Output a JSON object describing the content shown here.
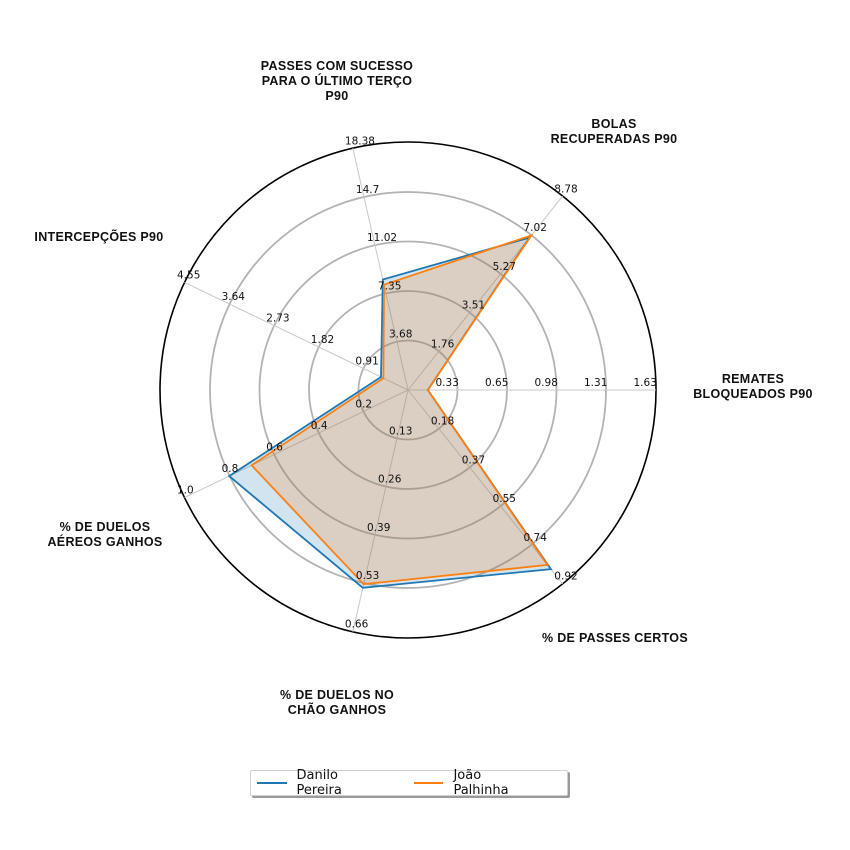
{
  "chart_data": {
    "type": "radar",
    "axes": [
      {
        "label": [
          "REMATES",
          "BLOQUEADOS P90"
        ],
        "ticks": [
          "0.33",
          "0.65",
          "0.98",
          "1.31",
          "1.63"
        ],
        "max": 1.63
      },
      {
        "label": [
          "BOLAS",
          "RECUPERADAS P90"
        ],
        "ticks": [
          "1.76",
          "3.51",
          "5.27",
          "7.02",
          "8.78"
        ],
        "max": 8.78
      },
      {
        "label": [
          "PASSES COM SUCESSO",
          "PARA O ÚLTIMO TERÇO",
          "P90"
        ],
        "ticks": [
          "3.68",
          "7.35",
          "11.02",
          "14.7",
          "18.38"
        ],
        "max": 18.38
      },
      {
        "label": [
          "INTERCEPÇÕES P90"
        ],
        "ticks": [
          "0.91",
          "1.82",
          "2.73",
          "3.64",
          "4.55"
        ],
        "max": 4.55
      },
      {
        "label": [
          "% DE DUELOS",
          "AÉREOS GANHOS"
        ],
        "ticks": [
          "0.2",
          "0.4",
          "0.6",
          "0.8",
          "1.0"
        ],
        "max": 1.0
      },
      {
        "label": [
          "% DE DUELOS NO",
          "CHÃO GANHOS"
        ],
        "ticks": [
          "0.13",
          "0.26",
          "0.39",
          "0.53",
          "0.66"
        ],
        "max": 0.66
      },
      {
        "label": [
          "% DE PASSES CERTOS"
        ],
        "ticks": [
          "0.18",
          "0.37",
          "0.55",
          "0.74",
          "0.92"
        ],
        "max": 0.92
      }
    ],
    "series": [
      {
        "name": "Danilo Pereira",
        "color": "#1f77b4",
        "fill": "#1f77b4",
        "values": [
          0.13,
          6.9,
          8.4,
          0.55,
          0.8,
          0.54,
          0.85
        ]
      },
      {
        "name": "João Palhinha",
        "color": "#ff7f0e",
        "fill": "#ff7f0e",
        "values": [
          0.13,
          7.0,
          8.0,
          0.5,
          0.7,
          0.53,
          0.83
        ]
      }
    ],
    "grid": true,
    "legend_position": "bottom-center"
  }
}
